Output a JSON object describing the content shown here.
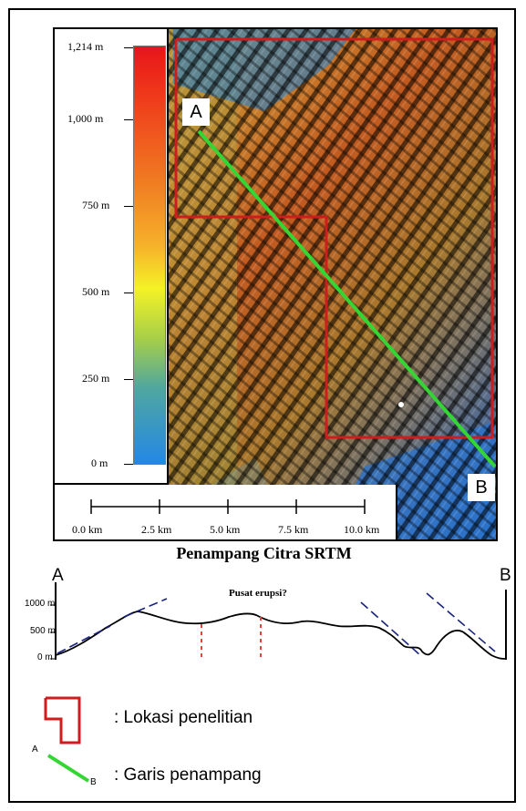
{
  "colorbar": {
    "labels": [
      "1,214 m",
      "1,000 m",
      "750 m",
      "500 m",
      "250 m",
      "0 m"
    ]
  },
  "scale_bar": {
    "labels": [
      "0.0 km",
      "2.5 km",
      "5.0 km",
      "7.5 km",
      "10.0 km"
    ]
  },
  "map_points": {
    "start": "A",
    "end": "B"
  },
  "profile": {
    "title": "Penampang Citra SRTM",
    "start_label": "A",
    "end_label": "B",
    "y_labels": [
      "1000 m",
      "500 m",
      "0 m"
    ],
    "annotation": "Pusat erupsi?"
  },
  "legend": {
    "study_area": ": Lokasi penelitian",
    "section_line": ": Garis penampang",
    "line_start": "A",
    "line_end": "B"
  },
  "colors": {
    "study_area_outline": "#d01c1c",
    "section_line": "#33d633",
    "guide_lines": "#1a237e",
    "eruption_marker": "#e0463a"
  }
}
